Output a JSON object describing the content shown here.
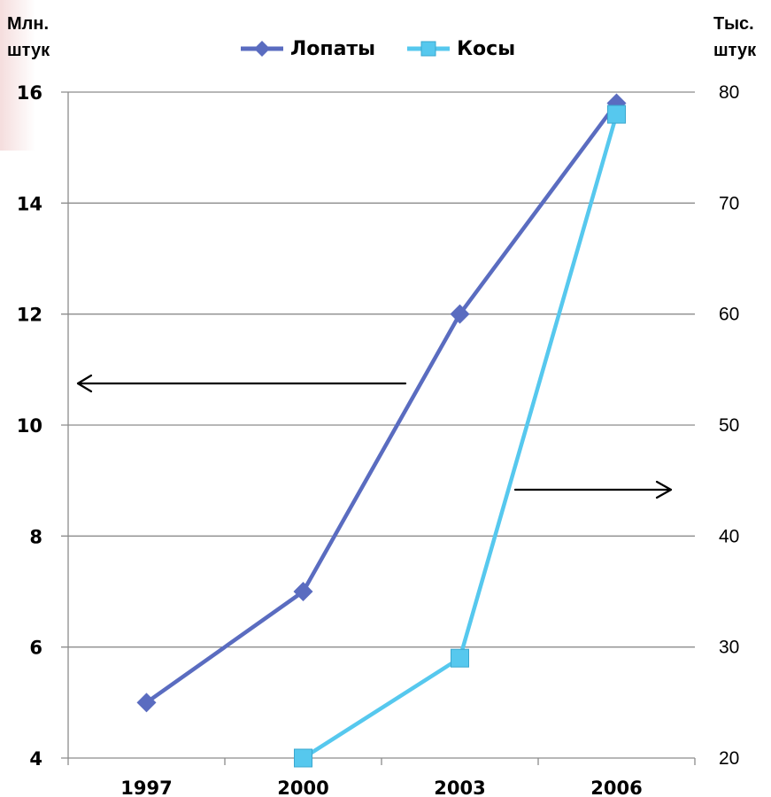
{
  "axes": {
    "left_unit": [
      "Млн.",
      "штук"
    ],
    "right_unit": [
      "Тыс.",
      "штук"
    ]
  },
  "colors": {
    "spades": "#5a6cc0",
    "scythes": "#56c8ee",
    "grid": "#8c8c8c",
    "arrow": "#000000"
  },
  "chart_data": {
    "type": "line",
    "categories": [
      "1997",
      "2000",
      "2003",
      "2006"
    ],
    "series": [
      {
        "name": "Лопаты",
        "axis": "left",
        "marker": "diamond",
        "values": [
          5,
          7,
          12,
          15.8
        ]
      },
      {
        "name": "Косы",
        "axis": "right",
        "marker": "square",
        "values": [
          null,
          20,
          29,
          78
        ]
      }
    ],
    "y_left": {
      "range": [
        4,
        16
      ],
      "ticks": [
        "4",
        "6",
        "8",
        "10",
        "12",
        "14",
        "16"
      ]
    },
    "y_right": {
      "range": [
        20,
        80
      ],
      "ticks": [
        "20",
        "30",
        "40",
        "50",
        "60",
        "70",
        "80"
      ]
    },
    "grid": true,
    "legend_position": "top-center",
    "annotations": [
      {
        "type": "arrow",
        "direction": "left",
        "points_to": "left axis",
        "series": "Лопаты"
      },
      {
        "type": "arrow",
        "direction": "right",
        "points_to": "right axis",
        "series": "Косы"
      }
    ]
  }
}
